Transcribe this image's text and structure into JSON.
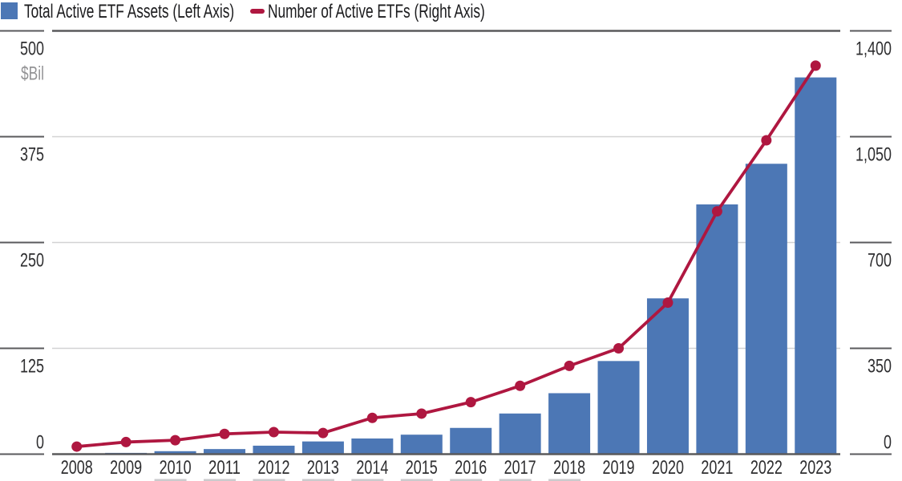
{
  "legend": {
    "items": [
      {
        "label": "Total Active ETF Assets (Left Axis)",
        "marker": "square",
        "color": "#4C77B5"
      },
      {
        "label": "Number of Active ETFs (Right Axis)",
        "marker": "dash",
        "color": "#AF1740"
      }
    ]
  },
  "chart_data": {
    "type": "bar",
    "subtype": "combo-bar-line-dual-axis",
    "categories": [
      "2008",
      "2009",
      "2010",
      "2011",
      "2012",
      "2013",
      "2014",
      "2015",
      "2016",
      "2017",
      "2018",
      "2019",
      "2020",
      "2021",
      "2022",
      "2023"
    ],
    "series": [
      {
        "name": "Total Active ETF Assets (Left Axis)",
        "type": "bar",
        "axis": "left",
        "color": "#4C77B5",
        "unit": "$Bil",
        "values": [
          0.8,
          1.5,
          3.5,
          6,
          10,
          15,
          18.5,
          23,
          31,
          48,
          72,
          110,
          184,
          295,
          343,
          445
        ]
      },
      {
        "name": "Number of Active ETFs (Right Axis)",
        "type": "line",
        "axis": "right",
        "color": "#AF1740",
        "values": [
          25,
          40,
          46,
          67,
          73,
          70,
          120,
          134,
          172,
          226,
          292,
          350,
          501,
          803,
          1038,
          1285
        ]
      }
    ],
    "left_axis": {
      "unit_label": "$Bil",
      "range": [
        0,
        500
      ],
      "tick_values": [
        500,
        375,
        250,
        125,
        0
      ],
      "tick_labels": [
        "500",
        "375",
        "250",
        "125",
        "0"
      ]
    },
    "right_axis": {
      "range": [
        0,
        1400
      ],
      "tick_values": [
        1400,
        1050,
        700,
        350,
        0
      ],
      "tick_labels": [
        "1,400",
        "1,050",
        "700",
        "350",
        "0"
      ]
    },
    "grid": "horizontal",
    "legend_position": "top-left"
  },
  "colors": {
    "bar": "#4C77B5",
    "line": "#AF1740",
    "axis_dark": "#5A5A5C",
    "grid_light": "#D3D3D4",
    "tick_text": "#2D2D2F",
    "unit_text": "#939395",
    "bottom_marks": "#CBCBCD",
    "background": "#FFFFFF"
  }
}
